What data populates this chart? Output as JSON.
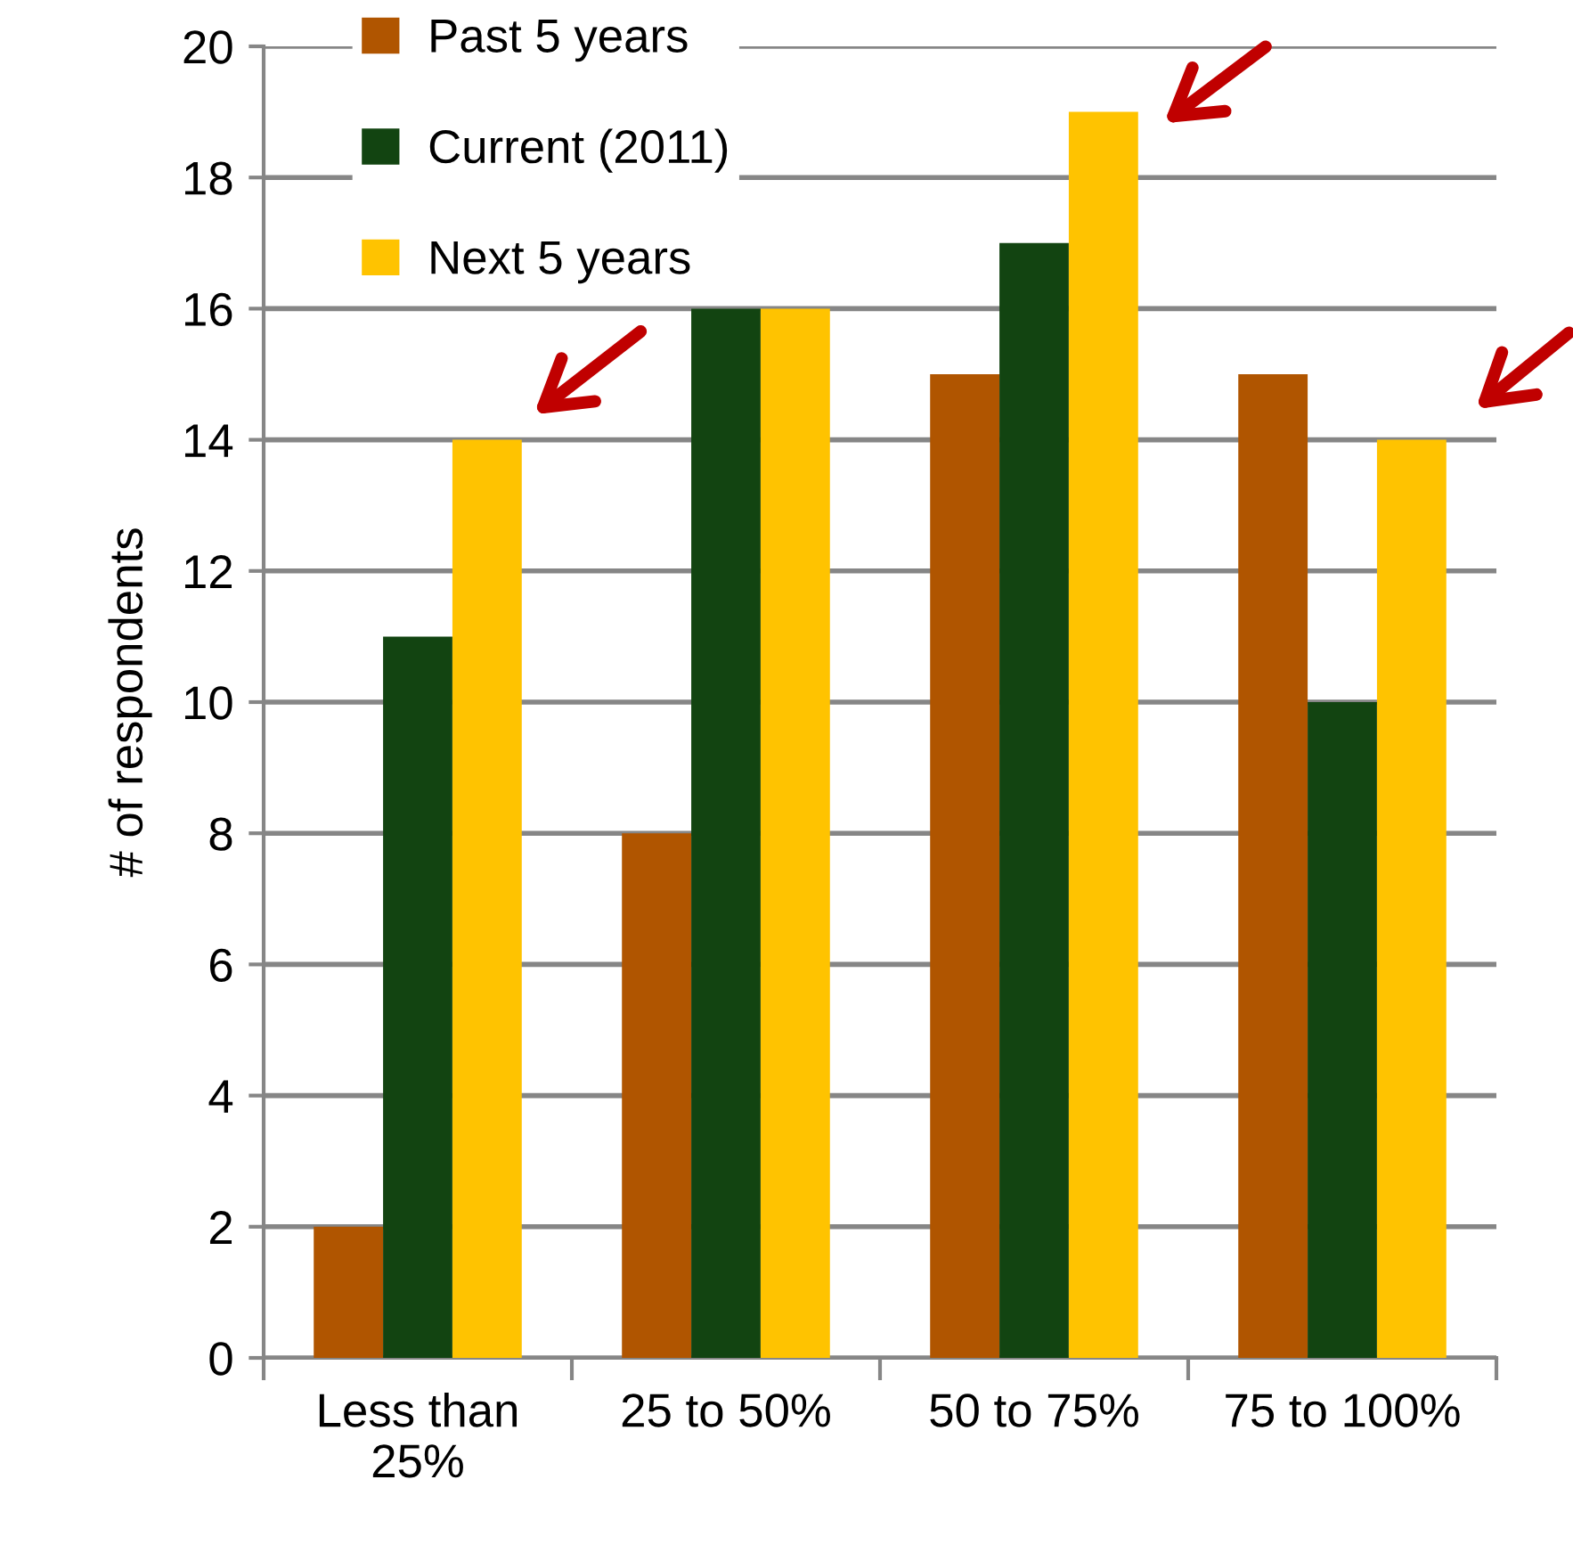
{
  "chart_data": {
    "type": "bar",
    "categories": [
      "Less than 25%",
      "25 to 50%",
      "50 to 75%",
      "75 to 100%"
    ],
    "series": [
      {
        "name": "Past 5 years",
        "color": "#b05500",
        "values": [
          2,
          8,
          15,
          15
        ]
      },
      {
        "name": "Current (2011)",
        "color": "#124411",
        "values": [
          11,
          16,
          17,
          10
        ]
      },
      {
        "name": "Next 5 years",
        "color": "#ffc300",
        "values": [
          14,
          16,
          19,
          14
        ]
      }
    ],
    "ylabel": "# of respondents",
    "ylim": [
      0,
      20
    ],
    "yticks": [
      0,
      2,
      4,
      6,
      8,
      10,
      12,
      14,
      16,
      18,
      20
    ],
    "grid": "y",
    "legend": "top left"
  }
}
